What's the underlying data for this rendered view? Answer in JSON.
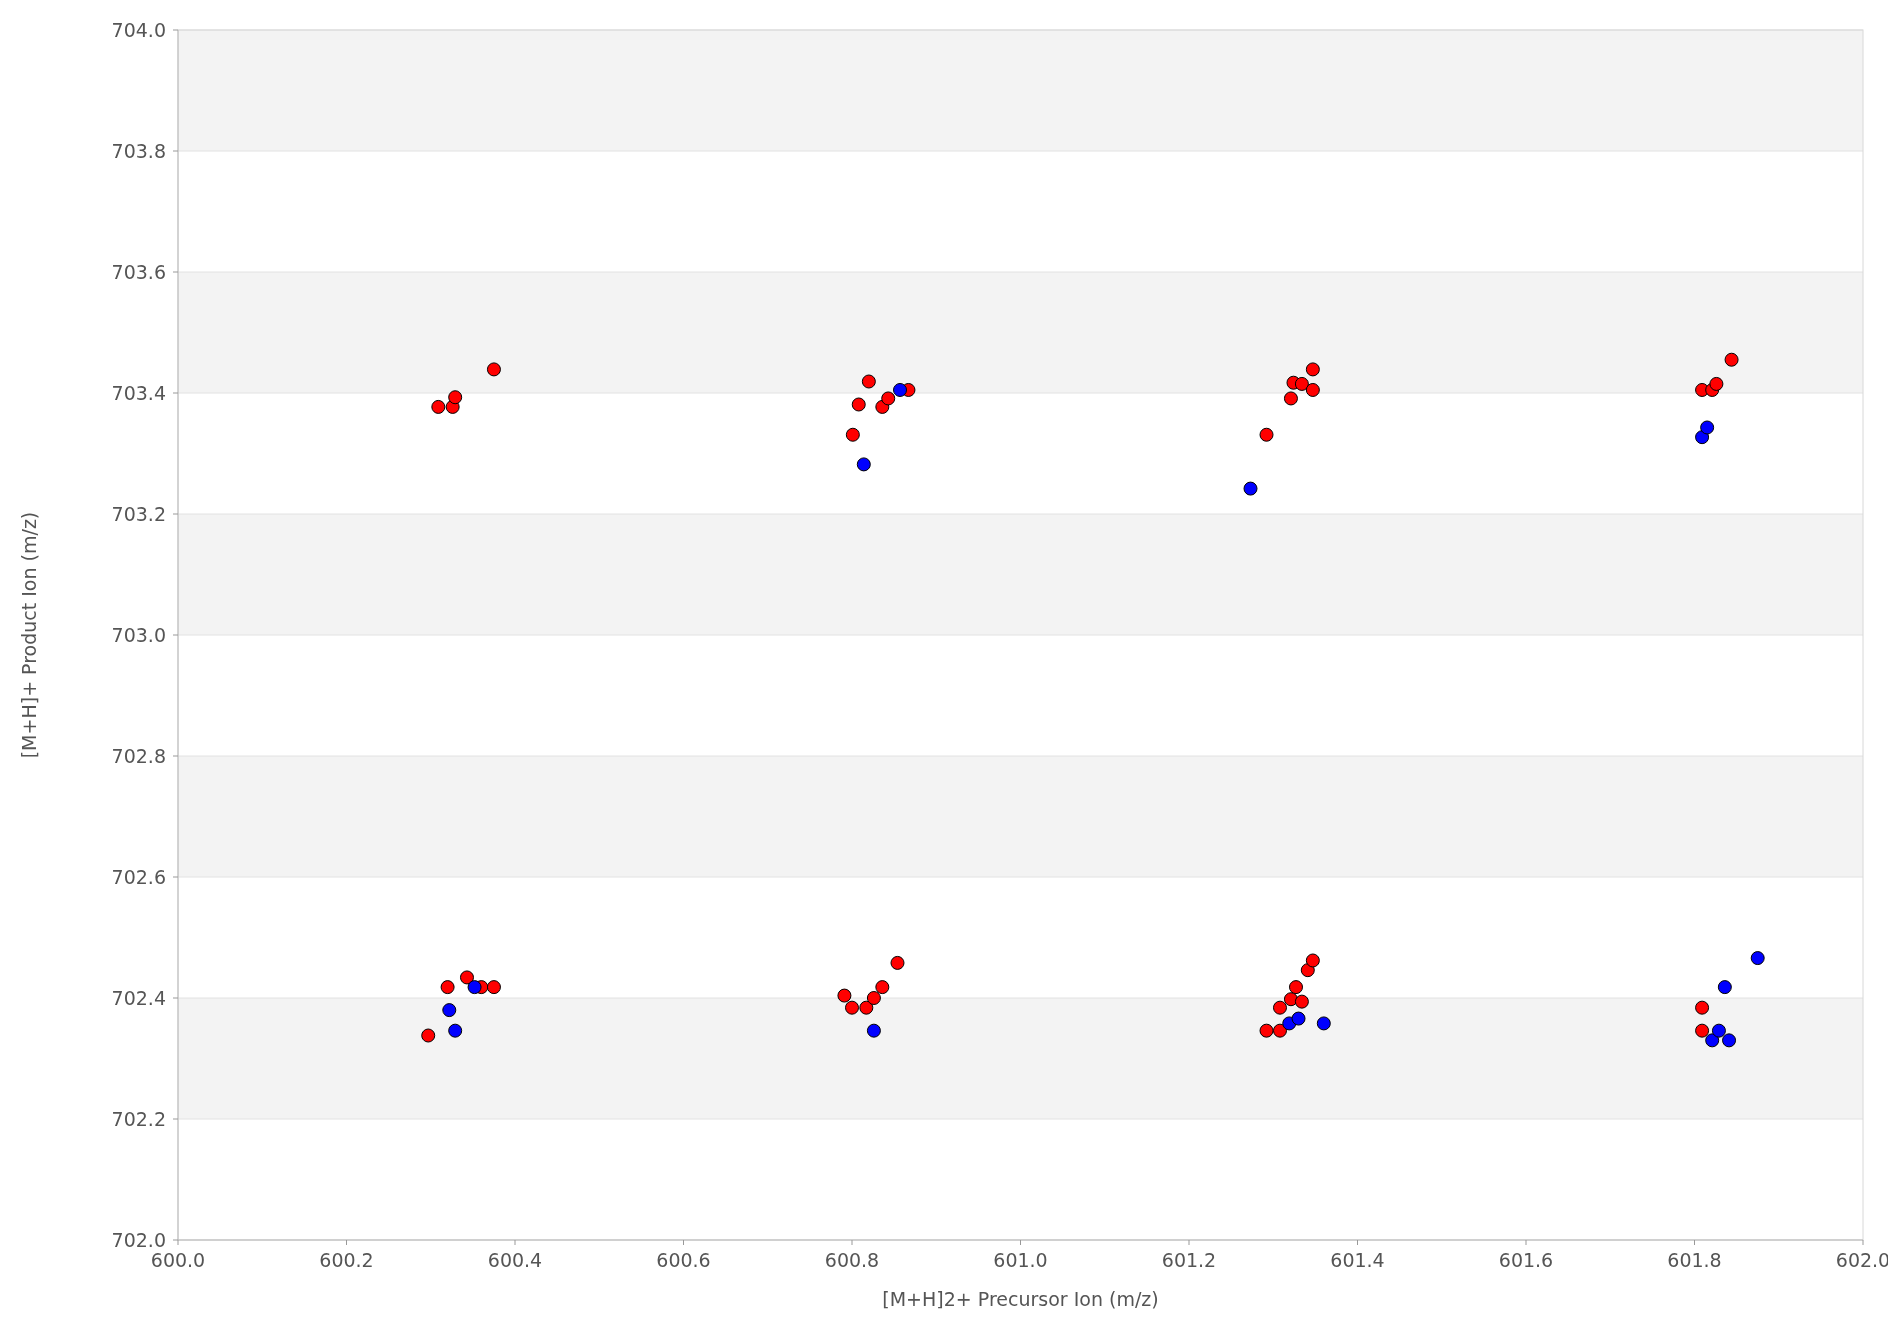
{
  "chart_data": {
    "type": "scatter",
    "xlabel": "[M+H]2+ Precursor Ion (m/z)",
    "ylabel": "[M+H]+ Product Ion (m/z)",
    "xlim": [
      600,
      602
    ],
    "ylim": [
      702,
      704
    ],
    "xticks": [
      {
        "value": 600,
        "label": "600.0"
      },
      {
        "value": 600.2,
        "label": "600.2"
      },
      {
        "value": 600.4,
        "label": "600.4"
      },
      {
        "value": 600.6,
        "label": "600.6"
      },
      {
        "value": 600.8,
        "label": "600.8"
      },
      {
        "value": 601,
        "label": "601.0"
      },
      {
        "value": 601.2,
        "label": "601.2"
      },
      {
        "value": 601.4,
        "label": "601.4"
      },
      {
        "value": 601.6,
        "label": "601.6"
      },
      {
        "value": 601.8,
        "label": "601.8"
      },
      {
        "value": 602,
        "label": "602.0"
      }
    ],
    "yticks": [
      {
        "value": 702,
        "label": "702.0"
      },
      {
        "value": 702.2,
        "label": "702.2"
      },
      {
        "value": 702.4,
        "label": "702.4"
      },
      {
        "value": 702.6,
        "label": "702.6"
      },
      {
        "value": 702.8,
        "label": "702.8"
      },
      {
        "value": 703,
        "label": "703.0"
      },
      {
        "value": 703.2,
        "label": "703.2"
      },
      {
        "value": 703.4,
        "label": "703.4"
      },
      {
        "value": 703.6,
        "label": "703.6"
      },
      {
        "value": 703.8,
        "label": "703.8"
      },
      {
        "value": 704,
        "label": "704.0"
      }
    ],
    "grid": "y",
    "marker": "circle",
    "series": [
      {
        "color": "#ff0000",
        "x": [
          600.309,
          600.326,
          600.329,
          600.375,
          600.801,
          600.808,
          600.82,
          600.836,
          600.843,
          600.867,
          601.292,
          601.321,
          601.324,
          601.334,
          601.347,
          601.347,
          601.809,
          601.821,
          601.826,
          601.844,
          600.297,
          600.32,
          600.343,
          600.36,
          600.375,
          600.791,
          600.8,
          600.817,
          600.826,
          600.836,
          600.854,
          601.292,
          601.308,
          601.308,
          601.321,
          601.327,
          601.334,
          601.341,
          601.347,
          601.809,
          601.809
        ],
        "values": [
          703.377,
          703.377,
          703.393,
          703.439,
          703.331,
          703.381,
          703.419,
          703.377,
          703.391,
          703.405,
          703.331,
          703.391,
          703.417,
          703.415,
          703.439,
          703.405,
          703.405,
          703.405,
          703.415,
          703.455,
          702.338,
          702.418,
          702.434,
          702.418,
          702.418,
          702.404,
          702.384,
          702.384,
          702.4,
          702.418,
          702.458,
          702.346,
          702.346,
          702.384,
          702.398,
          702.418,
          702.394,
          702.446,
          702.462,
          702.384,
          702.346
        ]
      },
      {
        "color": "#0000ff",
        "x": [
          600.814,
          600.857,
          601.273,
          601.809,
          601.815,
          600.322,
          600.329,
          600.352,
          600.826,
          601.319,
          601.33,
          601.36,
          601.821,
          601.829,
          601.841,
          601.836,
          601.875
        ],
        "values": [
          703.282,
          703.405,
          703.242,
          703.327,
          703.343,
          702.38,
          702.346,
          702.418,
          702.346,
          702.358,
          702.366,
          702.358,
          702.33,
          702.346,
          702.33,
          702.418,
          702.466
        ]
      }
    ]
  }
}
